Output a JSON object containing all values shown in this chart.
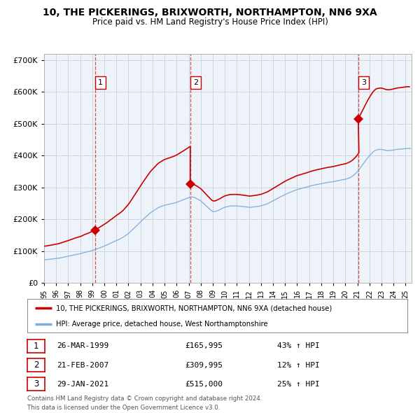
{
  "title": "10, THE PICKERINGS, BRIXWORTH, NORTHAMPTON, NN6 9XA",
  "subtitle": "Price paid vs. HM Land Registry's House Price Index (HPI)",
  "ylim": [
    0,
    720000
  ],
  "yticks": [
    0,
    100000,
    200000,
    300000,
    400000,
    500000,
    600000,
    700000
  ],
  "background_color": "#ffffff",
  "plot_bg_color": "#eef3fa",
  "grid_color": "#c8d0dc",
  "sale_color": "#cc0000",
  "hpi_color": "#7aaddb",
  "transactions": [
    {
      "num": 1,
      "date": "26-MAR-1999",
      "price": 165995,
      "hpi_pct": "43%",
      "x_year": 1999.22
    },
    {
      "num": 2,
      "date": "21-FEB-2007",
      "price": 309995,
      "hpi_pct": "12%",
      "x_year": 2007.13
    },
    {
      "num": 3,
      "date": "29-JAN-2021",
      "price": 515000,
      "hpi_pct": "25%",
      "x_year": 2021.07
    }
  ],
  "legend_sale_label": "10, THE PICKERINGS, BRIXWORTH, NORTHAMPTON, NN6 9XA (detached house)",
  "legend_hpi_label": "HPI: Average price, detached house, West Northamptonshire",
  "footer_line1": "Contains HM Land Registry data © Crown copyright and database right 2024.",
  "footer_line2": "This data is licensed under the Open Government Licence v3.0.",
  "xmin": 1995.0,
  "xmax": 2025.5
}
